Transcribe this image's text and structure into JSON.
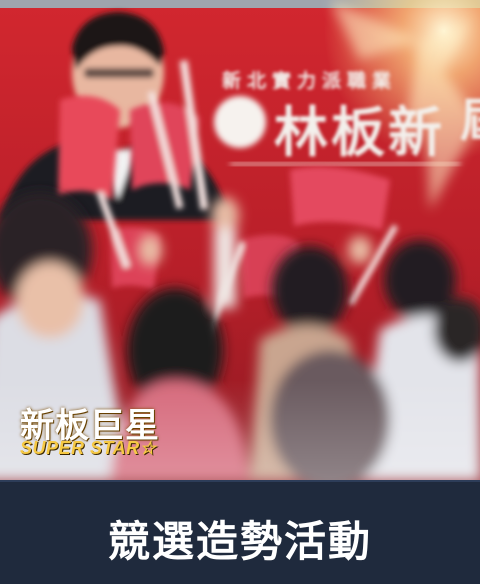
{
  "photo": {
    "banner_subtitle": "新北實力派職業",
    "banner_name": "林板新",
    "banner_edge": "屆",
    "colors": {
      "banner_red": "#c8242c",
      "banner_dark": "#8e1a22",
      "flag_pink": "#e8485a",
      "light_glow": "#fff2c8"
    }
  },
  "logo": {
    "title": "新板巨星",
    "subtitle": "SUPER STAR☆"
  },
  "caption": {
    "text": "競選造勢活動"
  }
}
